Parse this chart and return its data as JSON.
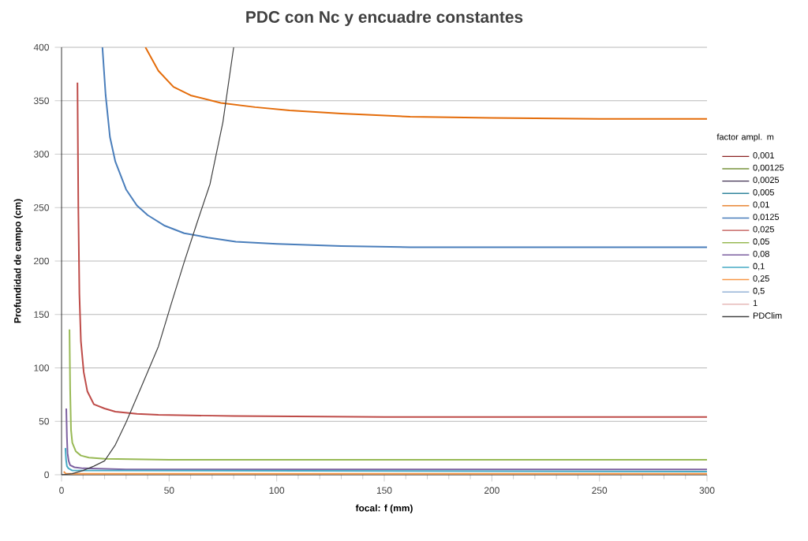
{
  "chart_data": {
    "type": "line",
    "title": "PDC con Nc y encuadre constantes",
    "xlabel": "focal: f (mm)",
    "ylabel": "Profundidad de campo (cm)",
    "legend_title": "factor ampl. m",
    "xlim": [
      0,
      300
    ],
    "ylim": [
      0,
      400
    ],
    "xticks": [
      0,
      50,
      100,
      150,
      200,
      250,
      300
    ],
    "yticks": [
      0,
      50,
      100,
      150,
      200,
      250,
      300,
      350,
      400
    ],
    "grid": "y",
    "legend": "right",
    "marker": "none",
    "line_style": "solid",
    "series": [
      {
        "name": "0,001",
        "color": "#8b2323"
      },
      {
        "name": "0,00125",
        "color": "#77933c"
      },
      {
        "name": "0,0025",
        "color": "#403152"
      },
      {
        "name": "0,005",
        "color": "#31859c"
      },
      {
        "name": "0,01",
        "color": "#e46c0a",
        "x": [
          39,
          45,
          52,
          60,
          74,
          90,
          106,
          130,
          162,
          200,
          250,
          300
        ],
        "values": [
          400,
          378,
          363,
          355,
          348,
          344,
          341,
          338,
          335,
          334,
          333,
          333
        ]
      },
      {
        "name": "0,0125",
        "color": "#4a7ebb",
        "x": [
          19,
          20.5,
          22.5,
          25,
          30,
          35,
          40,
          48,
          57,
          68,
          81,
          100,
          130,
          162,
          220,
          300
        ],
        "values": [
          400,
          355,
          316,
          293,
          267,
          252,
          243,
          233,
          226,
          222,
          218,
          216,
          214,
          213,
          213,
          213
        ]
      },
      {
        "name": "0,025",
        "color": "#be4b48",
        "x": [
          7.4,
          7.8,
          8.3,
          9,
          10.3,
          12,
          15,
          20,
          25,
          35,
          45,
          80,
          150,
          300
        ],
        "values": [
          367,
          250,
          169,
          125,
          96,
          78,
          66,
          62,
          59,
          57,
          56,
          55,
          54,
          54
        ]
      },
      {
        "name": "0,05",
        "color": "#98b954",
        "x": [
          3.7,
          4,
          4.4,
          5,
          6.6,
          9,
          12.7,
          20,
          50,
          300
        ],
        "values": [
          136,
          80,
          42,
          30,
          22,
          18,
          16,
          15,
          14,
          14
        ]
      },
      {
        "name": "0,08",
        "color": "#7d60a0",
        "x": [
          2.2,
          2.5,
          2.8,
          3.3,
          4,
          6,
          10,
          30,
          300
        ],
        "values": [
          62,
          35,
          20,
          13,
          9,
          7,
          6,
          5,
          5
        ]
      },
      {
        "name": "0,1",
        "color": "#46aac5",
        "x": [
          1.8,
          2.1,
          2.5,
          3.2,
          5,
          300
        ],
        "values": [
          25,
          14,
          8,
          6,
          4,
          3
        ]
      },
      {
        "name": "0,25",
        "color": "#f79646",
        "x": [
          1,
          2,
          300
        ],
        "values": [
          3,
          1,
          1
        ]
      },
      {
        "name": "0,5",
        "color": "#95b3d7"
      },
      {
        "name": "1",
        "color": "#e6b9b8"
      },
      {
        "name": "PDClim",
        "color": "#404040",
        "x": [
          0,
          5,
          10,
          15,
          20,
          25,
          30,
          37,
          45,
          51,
          57,
          63,
          69,
          75,
          80
        ],
        "values": [
          0,
          1,
          4,
          8,
          13,
          28,
          49,
          82,
          120,
          160,
          199,
          236,
          272,
          330,
          400
        ]
      }
    ]
  }
}
